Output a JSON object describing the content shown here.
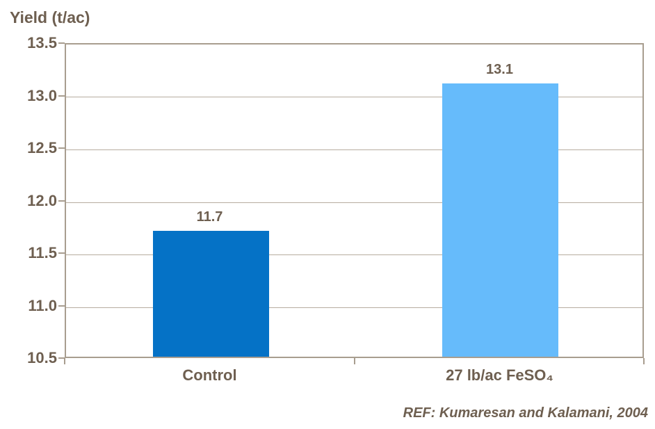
{
  "chart": {
    "title": "Yield (t/ac)",
    "reference": "REF: Kumaresan and Kalamani, 2004"
  },
  "chart_data": {
    "type": "bar",
    "title": "Yield (t/ac)",
    "categories": [
      "Control",
      "27 lb/ac FeSO₄"
    ],
    "values": [
      11.7,
      13.1
    ],
    "data_labels": [
      "11.7",
      "13.1"
    ],
    "bar_colors": [
      "#0572c6",
      "#66bbfb"
    ],
    "xlabel": "",
    "ylabel": "Yield (t/ac)",
    "ylim": [
      10.5,
      13.5
    ],
    "ytick_step": 0.5,
    "ytick_labels": [
      "13.5",
      "13.0",
      "12.5",
      "12.0",
      "11.5",
      "11.0",
      "10.5"
    ],
    "grid": true,
    "legend": false,
    "annotation": "REF: Kumaresan and Kalamani, 2004",
    "colors": {
      "text": "#6e5f50",
      "gridline": "#b6ac9f",
      "frame": "#a89d8f",
      "background": "#ffffff"
    }
  }
}
